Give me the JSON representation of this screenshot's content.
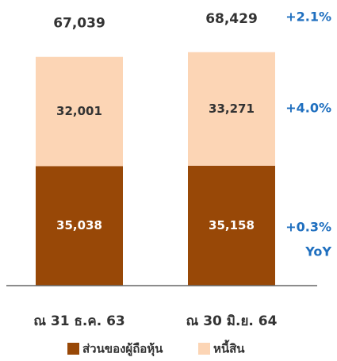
{
  "chart_data": {
    "type": "stacked_bar",
    "categories": [
      "ณ 31 ธ.ค. 63",
      "ณ 30 มิ.ย. 64"
    ],
    "series": [
      {
        "name": "ส่วนของผู้ถือหุ้น",
        "color": "#984807",
        "label_color": "#ffffff",
        "values": [
          35038,
          35158
        ],
        "value_labels": [
          "35,038",
          "35,158"
        ]
      },
      {
        "name": "หนี้สิน",
        "color": "#fcd5b5",
        "label_color": "#333333",
        "values": [
          32001,
          33271
        ],
        "value_labels": [
          "32,001",
          "33,271"
        ]
      }
    ],
    "totals": [
      67039,
      68429
    ],
    "total_labels": [
      "67,039",
      "68,429"
    ],
    "annotations": [
      "+2.1%",
      "+4.0%",
      "+0.3%",
      "YoY"
    ],
    "annotation_color": "#1f6fbf",
    "ylim": [
      0,
      80000
    ]
  }
}
